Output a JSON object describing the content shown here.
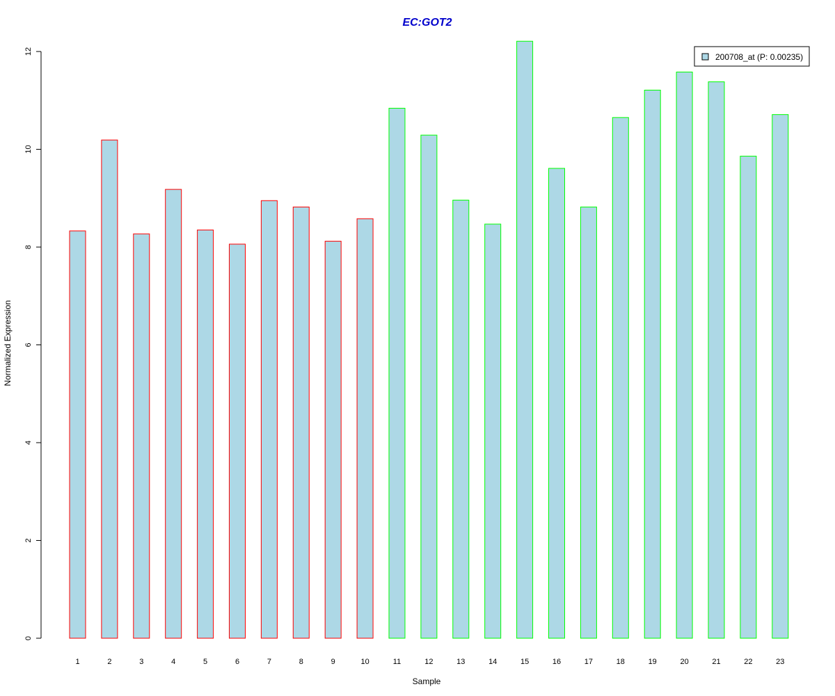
{
  "chart_data": {
    "type": "bar",
    "title": "EC:GOT2",
    "xlabel": "Sample",
    "ylabel": "Normalized Expression",
    "ylim": [
      0,
      12.25
    ],
    "yticks": [
      0,
      2,
      4,
      6,
      8,
      10,
      12
    ],
    "grid": false,
    "legend_position": "top-right",
    "categories": [
      "1",
      "2",
      "3",
      "4",
      "5",
      "6",
      "7",
      "8",
      "9",
      "10",
      "11",
      "12",
      "13",
      "14",
      "15",
      "16",
      "17",
      "18",
      "19",
      "20",
      "21",
      "22",
      "23"
    ],
    "series": [
      {
        "name": "200708_at (P: 0.00235)",
        "values": [
          8.33,
          10.19,
          8.27,
          9.18,
          8.35,
          8.06,
          8.95,
          8.82,
          8.12,
          8.58,
          10.84,
          10.29,
          8.96,
          8.47,
          12.21,
          9.61,
          8.82,
          10.65,
          11.21,
          11.58,
          11.38,
          9.86,
          10.71
        ],
        "group": [
          "red",
          "red",
          "red",
          "red",
          "red",
          "red",
          "red",
          "red",
          "red",
          "red",
          "green",
          "green",
          "green",
          "green",
          "green",
          "green",
          "green",
          "green",
          "green",
          "green",
          "green",
          "green",
          "green"
        ]
      }
    ]
  },
  "colors": {
    "bar_fill": "#add8e6",
    "group_red": "#ff0000",
    "group_green": "#00ff00",
    "title": "#0000cc",
    "axis": "#000000"
  }
}
